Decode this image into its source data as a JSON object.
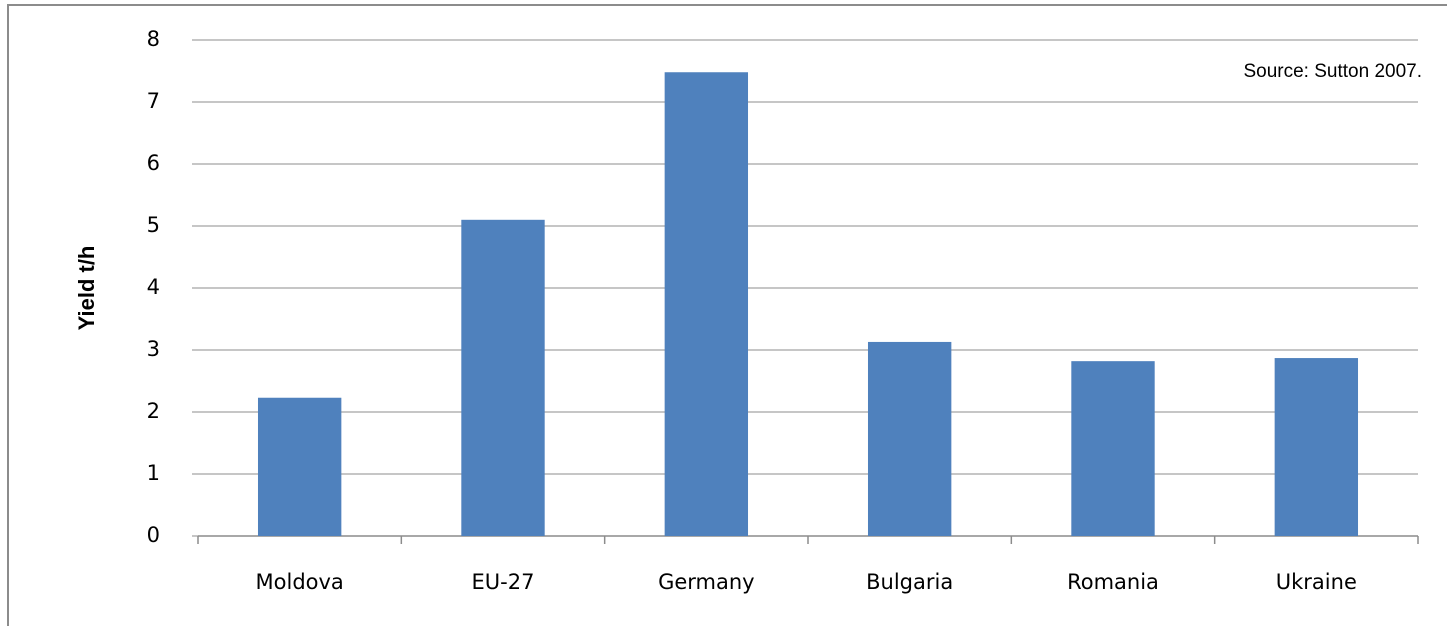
{
  "chart_data": {
    "type": "bar",
    "y_label": "Yield t/h",
    "annotation": "Source: Sutton 2007.",
    "categories": [
      "Moldova",
      "EU-27",
      "Germany",
      "Bulgaria",
      "Romania",
      "Ukraine"
    ],
    "values": [
      2.23,
      5.1,
      7.48,
      3.13,
      2.82,
      2.87
    ],
    "color": "#4f81bd",
    "ylim": [
      0,
      8
    ],
    "yticks": [
      0,
      1,
      2,
      3,
      4,
      5,
      6,
      7,
      8
    ],
    "grid": true
  }
}
